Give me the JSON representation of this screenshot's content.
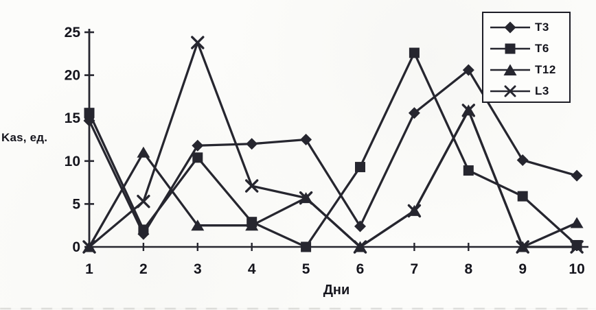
{
  "chart_data": {
    "type": "line",
    "title": "",
    "xlabel": "Дни",
    "ylabel": "Kas, ед.",
    "x": [
      1,
      2,
      3,
      4,
      5,
      6,
      7,
      8,
      9,
      10
    ],
    "ylim": [
      0,
      25
    ],
    "yticks": [
      0,
      5,
      10,
      15,
      20,
      25
    ],
    "grid": false,
    "legend_position": "top-right",
    "line_color": "#26262f",
    "series": [
      {
        "name": "T3",
        "marker": "diamond",
        "values": [
          14.7,
          1.5,
          11.8,
          12.0,
          12.5,
          2.4,
          15.6,
          20.6,
          10.1,
          8.3
        ]
      },
      {
        "name": "T6",
        "marker": "square",
        "values": [
          15.6,
          2.0,
          10.4,
          2.9,
          0.0,
          9.3,
          22.6,
          8.9,
          5.9,
          0.2
        ]
      },
      {
        "name": "T12",
        "marker": "triangle",
        "values": [
          0.0,
          11.0,
          2.5,
          2.5,
          5.7,
          0.0,
          4.2,
          15.9,
          0.0,
          2.8
        ]
      },
      {
        "name": "L3",
        "marker": "x",
        "values": [
          0.0,
          5.3,
          23.8,
          7.1,
          5.7,
          0.0,
          4.2,
          15.9,
          0.0,
          0.0
        ]
      }
    ]
  }
}
